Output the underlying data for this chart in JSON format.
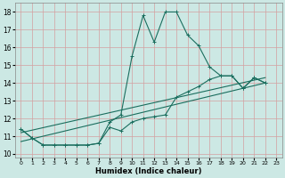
{
  "xlabel": "Humidex (Indice chaleur)",
  "background_color": "#cce8e4",
  "grid_color": "#d4a0a0",
  "line_color": "#1a6e5e",
  "xlim": [
    -0.5,
    23.5
  ],
  "ylim": [
    9.8,
    18.5
  ],
  "yticks": [
    10,
    11,
    12,
    13,
    14,
    15,
    16,
    17,
    18
  ],
  "xticks": [
    0,
    1,
    2,
    3,
    4,
    5,
    6,
    7,
    8,
    9,
    10,
    11,
    12,
    13,
    14,
    15,
    16,
    17,
    18,
    19,
    20,
    21,
    22,
    23
  ],
  "series": [
    {
      "x": [
        0,
        1,
        2,
        3,
        4,
        5,
        6,
        7,
        8,
        9,
        10,
        11,
        12,
        13,
        14,
        15,
        16,
        17,
        18,
        19,
        20,
        21,
        22
      ],
      "y": [
        11.4,
        10.9,
        10.5,
        10.5,
        10.5,
        10.5,
        10.5,
        10.6,
        11.8,
        12.2,
        15.5,
        17.8,
        16.3,
        18.0,
        18.0,
        16.7,
        16.1,
        14.9,
        14.4,
        14.4,
        13.7,
        14.3,
        14.0
      ]
    },
    {
      "x": [
        0,
        1,
        2,
        3,
        4,
        5,
        6,
        7,
        8,
        9,
        10,
        11,
        12,
        13,
        14,
        15,
        16,
        17,
        18,
        19,
        20,
        21,
        22
      ],
      "y": [
        11.4,
        10.9,
        10.5,
        10.5,
        10.5,
        10.5,
        10.5,
        10.6,
        11.5,
        11.3,
        11.8,
        12.0,
        12.1,
        12.2,
        13.2,
        13.5,
        13.8,
        14.2,
        14.4,
        14.4,
        13.7,
        14.3,
        14.0
      ]
    },
    {
      "x": [
        0,
        22
      ],
      "y": [
        11.2,
        14.3
      ]
    },
    {
      "x": [
        0,
        22
      ],
      "y": [
        10.7,
        14.0
      ]
    }
  ]
}
